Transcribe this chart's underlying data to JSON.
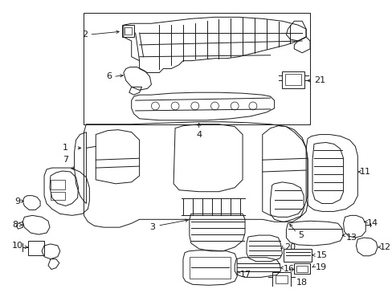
{
  "background_color": "#ffffff",
  "line_color": "#1a1a1a",
  "figsize": [
    4.89,
    3.6
  ],
  "dpi": 100,
  "font_size": 7.0,
  "lw": 0.7
}
